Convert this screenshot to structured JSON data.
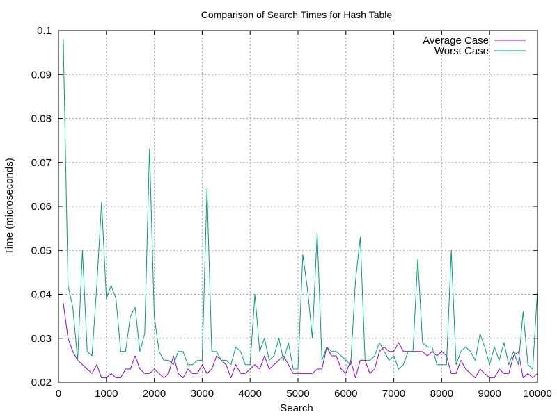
{
  "chart_data": {
    "type": "line",
    "title": "Comparison of Search Times for Hash Table",
    "xlabel": "Search",
    "ylabel": "Time (microseconds)",
    "xlim": [
      0,
      10000
    ],
    "ylim": [
      0.02,
      0.1
    ],
    "xticks": [
      0,
      1000,
      2000,
      3000,
      4000,
      5000,
      6000,
      7000,
      8000,
      9000,
      10000
    ],
    "yticks": [
      0.02,
      0.03,
      0.04,
      0.05,
      0.06,
      0.07,
      0.08,
      0.09,
      0.1
    ],
    "xtick_labels": [
      "0",
      "1000",
      "2000",
      "3000",
      "4000",
      "5000",
      "6000",
      "7000",
      "8000",
      "9000",
      "10000"
    ],
    "ytick_labels": [
      "0.02",
      "0.03",
      "0.04",
      "0.05",
      "0.06",
      "0.07",
      "0.08",
      "0.09",
      "0.1"
    ],
    "grid": true,
    "legend_position": "top-right",
    "x": [
      100,
      200,
      300,
      400,
      500,
      600,
      700,
      800,
      900,
      1000,
      1100,
      1200,
      1300,
      1400,
      1500,
      1600,
      1700,
      1800,
      1900,
      2000,
      2100,
      2200,
      2300,
      2400,
      2500,
      2600,
      2700,
      2800,
      2900,
      3000,
      3100,
      3200,
      3300,
      3400,
      3500,
      3600,
      3700,
      3800,
      3900,
      4000,
      4100,
      4200,
      4300,
      4400,
      4500,
      4600,
      4700,
      4800,
      4900,
      5000,
      5100,
      5200,
      5300,
      5400,
      5500,
      5600,
      5700,
      5800,
      5900,
      6000,
      6100,
      6200,
      6300,
      6400,
      6500,
      6600,
      6700,
      6800,
      6900,
      7000,
      7100,
      7200,
      7300,
      7400,
      7500,
      7600,
      7700,
      7800,
      7900,
      8000,
      8100,
      8200,
      8300,
      8400,
      8500,
      8600,
      8700,
      8800,
      8900,
      9000,
      9100,
      9200,
      9300,
      9400,
      9500,
      9600,
      9700,
      9800,
      9900,
      10000
    ],
    "series": [
      {
        "name": "Average Case",
        "color": "#9400d3",
        "values": [
          0.038,
          0.03,
          0.027,
          0.025,
          0.024,
          0.023,
          0.022,
          0.024,
          0.021,
          0.021,
          0.022,
          0.021,
          0.021,
          0.023,
          0.023,
          0.026,
          0.023,
          0.022,
          0.022,
          0.023,
          0.022,
          0.021,
          0.022,
          0.026,
          0.022,
          0.021,
          0.023,
          0.022,
          0.022,
          0.024,
          0.022,
          0.023,
          0.026,
          0.025,
          0.024,
          0.021,
          0.024,
          0.022,
          0.022,
          0.023,
          0.024,
          0.023,
          0.026,
          0.023,
          0.024,
          0.025,
          0.026,
          0.024,
          0.022,
          0.022,
          0.022,
          0.022,
          0.022,
          0.023,
          0.023,
          0.028,
          0.026,
          0.026,
          0.023,
          0.022,
          0.025,
          0.021,
          0.025,
          0.025,
          0.022,
          0.023,
          0.027,
          0.028,
          0.027,
          0.027,
          0.029,
          0.027,
          0.027,
          0.027,
          0.027,
          0.027,
          0.026,
          0.027,
          0.026,
          0.027,
          0.026,
          0.022,
          0.022,
          0.025,
          0.023,
          0.022,
          0.021,
          0.023,
          0.022,
          0.021,
          0.021,
          0.023,
          0.022,
          0.022,
          0.026,
          0.027,
          0.021,
          0.022,
          0.021,
          0.022
        ]
      },
      {
        "name": "Worst Case",
        "color": "#009e73",
        "values": [
          0.098,
          0.042,
          0.037,
          0.025,
          0.05,
          0.027,
          0.026,
          0.042,
          0.061,
          0.039,
          0.042,
          0.039,
          0.027,
          0.027,
          0.035,
          0.037,
          0.027,
          0.031,
          0.073,
          0.035,
          0.027,
          0.025,
          0.025,
          0.024,
          0.027,
          0.027,
          0.024,
          0.024,
          0.025,
          0.025,
          0.064,
          0.027,
          0.027,
          0.025,
          0.025,
          0.024,
          0.028,
          0.027,
          0.024,
          0.024,
          0.04,
          0.027,
          0.03,
          0.025,
          0.026,
          0.03,
          0.025,
          0.029,
          0.023,
          0.023,
          0.049,
          0.041,
          0.03,
          0.054,
          0.025,
          0.028,
          0.027,
          0.027,
          0.026,
          0.025,
          0.024,
          0.043,
          0.053,
          0.025,
          0.025,
          0.026,
          0.029,
          0.027,
          0.025,
          0.026,
          0.023,
          0.024,
          0.027,
          0.027,
          0.048,
          0.029,
          0.028,
          0.028,
          0.024,
          0.024,
          0.024,
          0.05,
          0.024,
          0.027,
          0.028,
          0.027,
          0.025,
          0.031,
          0.028,
          0.024,
          0.028,
          0.025,
          0.029,
          0.024,
          0.027,
          0.024,
          0.036,
          0.024,
          0.023,
          0.041
        ]
      }
    ]
  }
}
